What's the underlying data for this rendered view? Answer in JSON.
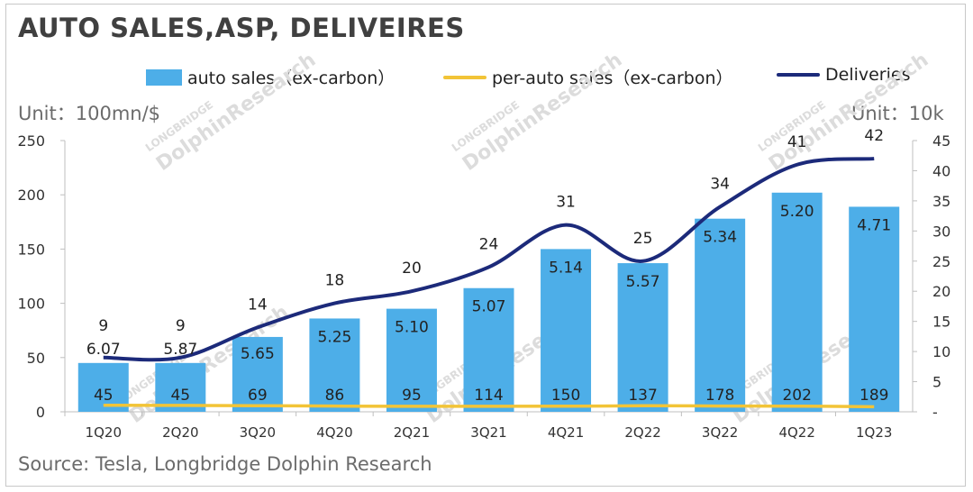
{
  "title": "AUTO SALES,ASP, DELIVEIRES",
  "unit_left": "Unit：100mn/$",
  "unit_right": "Unit：10k",
  "source": "Source: Tesla, Longbridge Dolphin Research",
  "watermark": {
    "line1": "LONGBRIDGE",
    "line2": "DolphinResearch"
  },
  "colors": {
    "bar": "#4daee8",
    "asp_line": "#f2c437",
    "deliveries_line": "#1c2a7a",
    "axis": "#bfbfbf"
  },
  "legend": {
    "bar": "auto sales（ex-carbon）",
    "asp": "per-auto sales（ex-carbon）",
    "deliveries": "Deliveries"
  },
  "chart_data": {
    "type": "bar",
    "categories": [
      "1Q20",
      "2Q20",
      "3Q20",
      "4Q20",
      "2Q21",
      "3Q21",
      "4Q21",
      "2Q22",
      "3Q22",
      "4Q22",
      "1Q23"
    ],
    "series": [
      {
        "name": "auto sales（ex-carbon）",
        "type": "bar",
        "axis": "left",
        "values": [
          45,
          45,
          69,
          86,
          95,
          114,
          150,
          137,
          178,
          202,
          189
        ]
      },
      {
        "name": "per-auto sales（ex-carbon）",
        "type": "line",
        "axis": "left",
        "values": [
          6.07,
          5.87,
          5.65,
          5.25,
          5.1,
          5.07,
          5.14,
          5.57,
          5.34,
          5.2,
          4.71
        ]
      },
      {
        "name": "Deliveries",
        "type": "line",
        "axis": "right",
        "values": [
          9,
          9,
          14,
          18,
          20,
          24,
          31,
          25,
          34,
          41,
          42
        ]
      }
    ],
    "y_left": {
      "min": 0,
      "max": 250,
      "ticks": [
        "0",
        "50",
        "100",
        "150",
        "200",
        "250"
      ]
    },
    "y_right": {
      "min": 0,
      "max": 45,
      "ticks": [
        "-",
        "5",
        "10",
        "15",
        "20",
        "25",
        "30",
        "35",
        "40",
        "45"
      ]
    },
    "grid": false,
    "legend_position": "top"
  }
}
